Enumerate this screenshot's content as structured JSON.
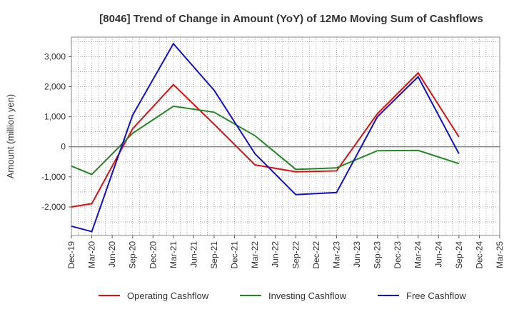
{
  "chart_data": {
    "type": "line",
    "title": "[8046]  Trend of Change in Amount (YoY) of 12Mo Moving Sum of Cashflows",
    "xlabel": "",
    "ylabel": "Amount (million yen)",
    "ylim": [
      -2950,
      3650
    ],
    "yticks": [
      3000,
      2000,
      1000,
      0,
      -1000,
      -2000
    ],
    "ytick_labels": [
      "3,000",
      "2,000",
      "1,000",
      "0",
      "-1,000",
      "-2,000"
    ],
    "categories": [
      "Dec-19",
      "Mar-20",
      "Jun-20",
      "Sep-20",
      "Dec-20",
      "Mar-21",
      "Jun-21",
      "Sep-21",
      "Dec-21",
      "Mar-22",
      "Jun-22",
      "Sep-22",
      "Dec-22",
      "Mar-23",
      "Jun-23",
      "Sep-23",
      "Dec-23",
      "Mar-24",
      "Jun-24",
      "Sep-24",
      "Dec-24",
      "Mar-25"
    ],
    "series": [
      {
        "name": "Operating Cashflow",
        "color": "#dd1111",
        "values": [
          -2000,
          -1890,
          null,
          600,
          null,
          2070,
          null,
          750,
          null,
          -600,
          null,
          -830,
          null,
          -800,
          null,
          1100,
          null,
          2460,
          null,
          330,
          null,
          null
        ]
      },
      {
        "name": "Investing Cashflow",
        "color": "#228822",
        "values": [
          -640,
          -920,
          null,
          450,
          null,
          1350,
          null,
          1150,
          null,
          370,
          null,
          -750,
          null,
          -700,
          null,
          -130,
          null,
          -120,
          null,
          -560,
          null,
          null
        ]
      },
      {
        "name": "Free Cashflow",
        "color": "#1111cc",
        "values": [
          -2640,
          -2820,
          null,
          1050,
          null,
          3430,
          null,
          1880,
          null,
          -230,
          null,
          -1590,
          null,
          -1520,
          null,
          1000,
          null,
          2330,
          null,
          -230,
          null,
          null
        ]
      }
    ],
    "grid": true,
    "legend": "bottom"
  }
}
